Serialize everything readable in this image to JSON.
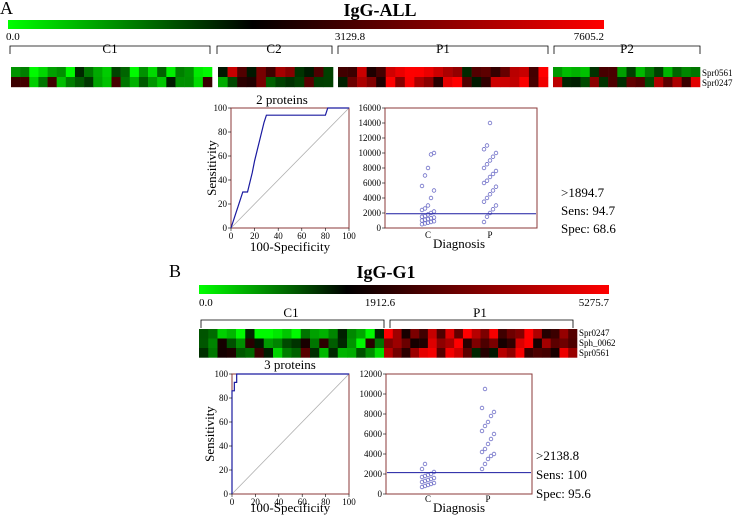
{
  "panelA": {
    "letter": "A",
    "title": "IgG-ALL",
    "scale": {
      "min": "0.0",
      "mid": "3129.8",
      "max": "7605.2"
    },
    "groups": [
      "C1",
      "C2",
      "P1",
      "P2"
    ],
    "proteins": [
      "Spr0561",
      "Spr0247"
    ],
    "roc_title": "2 proteins",
    "roc": {
      "xlabel": "100-Specificity",
      "ylabel": "Sensitivity",
      "ticks": [
        "0",
        "20",
        "40",
        "60",
        "80",
        "100"
      ],
      "points": [
        [
          0,
          0
        ],
        [
          2,
          6
        ],
        [
          4,
          12
        ],
        [
          6,
          18
        ],
        [
          8,
          24
        ],
        [
          10,
          30
        ],
        [
          14,
          30
        ],
        [
          16,
          38
        ],
        [
          18,
          46
        ],
        [
          20,
          56
        ],
        [
          22,
          64
        ],
        [
          24,
          72
        ],
        [
          26,
          80
        ],
        [
          28,
          88
        ],
        [
          30,
          94
        ],
        [
          36,
          94
        ],
        [
          80,
          94
        ],
        [
          82,
          100
        ],
        [
          100,
          100
        ]
      ]
    },
    "dot": {
      "xlabel": "Diagnosis",
      "categories": [
        "C",
        "P"
      ],
      "yticks": [
        "0",
        "2000",
        "4000",
        "6000",
        "8000",
        "10000",
        "12000",
        "14000",
        "16000"
      ],
      "ymax": 16000,
      "cutoff": 1894.7,
      "C": [
        500,
        600,
        700,
        800,
        900,
        1000,
        1100,
        1200,
        1300,
        1400,
        1500,
        1600,
        1800,
        2000,
        2200,
        2400,
        2600,
        3000,
        4000,
        5000,
        5600,
        7000,
        8000,
        9800,
        10000
      ],
      "P": [
        800,
        1500,
        2000,
        2500,
        3000,
        3500,
        4000,
        4500,
        5000,
        5500,
        6000,
        6300,
        6800,
        7200,
        7600,
        8000,
        8500,
        9000,
        9500,
        10000,
        10500,
        11000,
        14000
      ]
    },
    "stats": {
      "cut": ">1894.7",
      "sens": "Sens: 94.7",
      "spec": "Spec: 68.6"
    }
  },
  "panelB": {
    "letter": "B",
    "title": "IgG-G1",
    "scale": {
      "min": "0.0",
      "mid": "1912.6",
      "max": "5275.7"
    },
    "groups": [
      "C1",
      "P1"
    ],
    "proteins": [
      "Spr0247",
      "Sph_0062",
      "Spr0561"
    ],
    "roc_title": "3 proteins",
    "roc": {
      "xlabel": "100-Specificity",
      "ylabel": "Sensitivity",
      "ticks": [
        "0",
        "20",
        "40",
        "60",
        "80",
        "100"
      ],
      "points": [
        [
          0,
          0
        ],
        [
          0,
          86
        ],
        [
          2,
          86
        ],
        [
          2,
          93
        ],
        [
          4,
          93
        ],
        [
          4,
          100
        ],
        [
          100,
          100
        ]
      ]
    },
    "dot": {
      "xlabel": "Diagnosis",
      "categories": [
        "C",
        "P"
      ],
      "yticks": [
        "0",
        "2000",
        "4000",
        "6000",
        "8000",
        "10000",
        "12000"
      ],
      "ymax": 12000,
      "cutoff": 2138.8,
      "C": [
        700,
        800,
        900,
        1000,
        1100,
        1200,
        1300,
        1400,
        1500,
        1600,
        1700,
        1800,
        1900,
        2000,
        2200,
        2500,
        3000
      ],
      "P": [
        2500,
        3000,
        3500,
        3800,
        4000,
        4200,
        4500,
        5000,
        5500,
        6000,
        6300,
        6800,
        7200,
        7800,
        8200,
        8600,
        10500
      ]
    },
    "stats": {
      "cut": ">2138.8",
      "sens": "Sens: 100",
      "spec": "Spec: 95.6"
    }
  },
  "colors": {
    "green": "#00ff00",
    "black": "#000000",
    "red": "#ff0000",
    "frame": "#8b3a3a",
    "line": "#1a1aa0",
    "dot": "#7070c8",
    "diag": "#b0b0b0"
  }
}
